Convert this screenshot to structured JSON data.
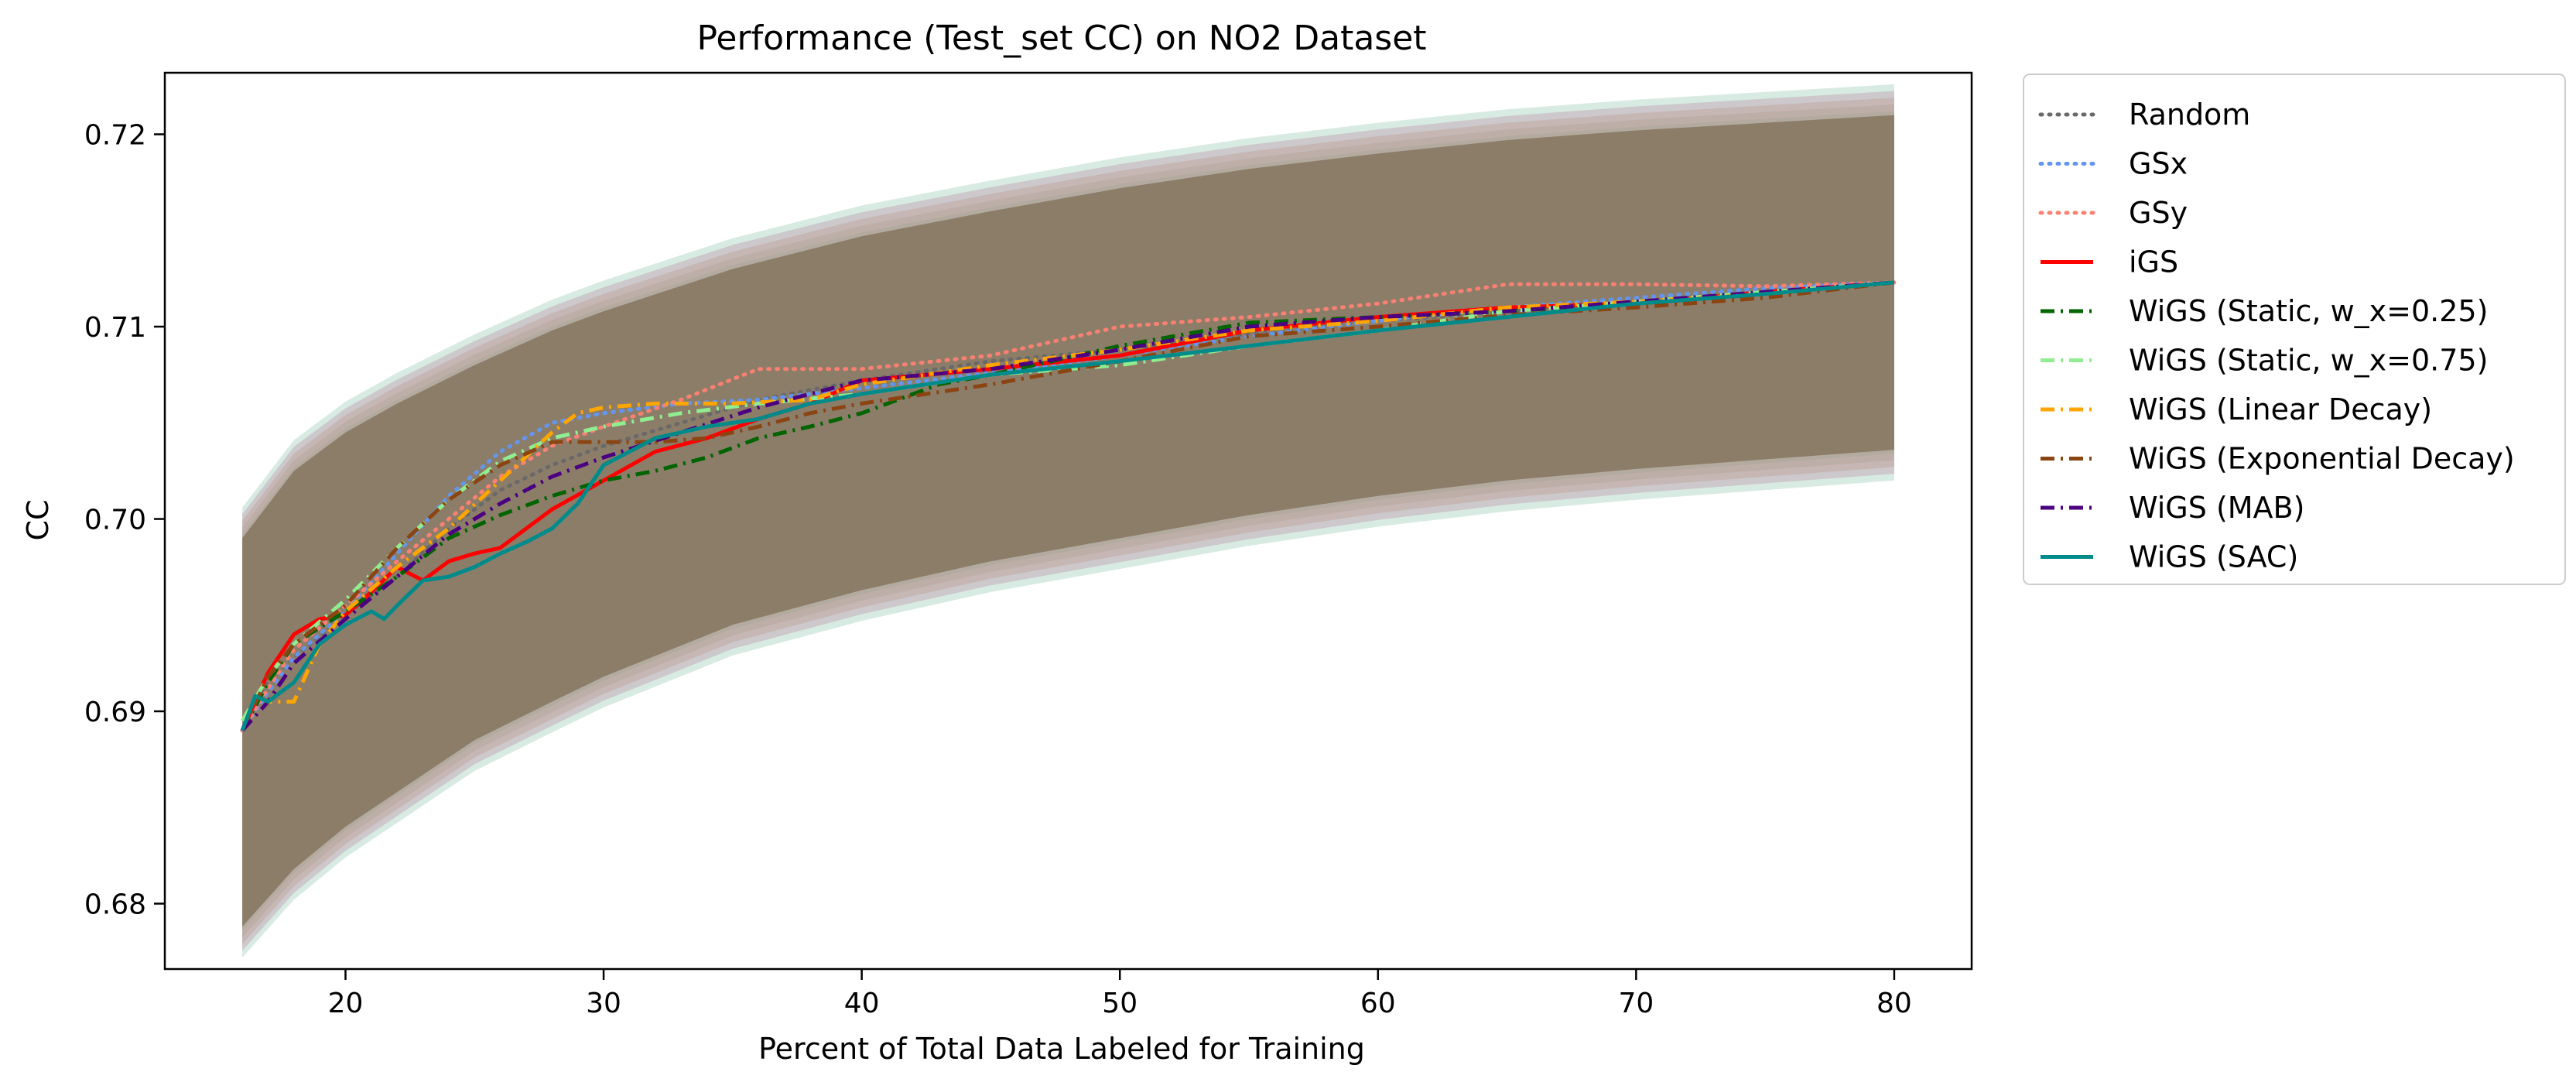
{
  "chart_data": {
    "type": "line",
    "title": "Performance (Test_set CC) on NO2 Dataset",
    "xlabel": "Percent of Total Data Labeled for Training",
    "ylabel": "CC",
    "xlim": [
      13,
      83
    ],
    "ylim": [
      0.6766,
      0.7232
    ],
    "xticks": [
      20,
      30,
      40,
      50,
      60,
      70,
      80
    ],
    "yticks": [
      0.68,
      0.69,
      0.7,
      0.71,
      0.72
    ],
    "xtick_labels": [
      "20",
      "30",
      "40",
      "50",
      "60",
      "70",
      "80"
    ],
    "ytick_labels": [
      "0.68",
      "0.69",
      "0.70",
      "0.71",
      "0.72"
    ],
    "grid": false,
    "legend_position": "outside-right",
    "shared_band": {
      "color": "#a09685",
      "x": [
        16,
        18,
        20,
        22,
        25,
        28,
        30,
        35,
        40,
        45,
        50,
        55,
        60,
        65,
        70,
        75,
        80
      ],
      "upper": [
        0.699,
        0.7025,
        0.7045,
        0.706,
        0.708,
        0.7098,
        0.7108,
        0.713,
        0.7147,
        0.716,
        0.7172,
        0.7182,
        0.719,
        0.7197,
        0.7202,
        0.7206,
        0.721
      ],
      "lower": [
        0.6788,
        0.6818,
        0.684,
        0.6858,
        0.6885,
        0.6905,
        0.6918,
        0.6945,
        0.6963,
        0.6978,
        0.699,
        0.7002,
        0.7012,
        0.702,
        0.7026,
        0.7031,
        0.7036
      ]
    },
    "series": [
      {
        "name": "Random",
        "color": "#696969",
        "dash": "dotted",
        "x": [
          16,
          17,
          18,
          20,
          22,
          24,
          26,
          28,
          30,
          33,
          36,
          40,
          45,
          50,
          55,
          60,
          65,
          70,
          75,
          80
        ],
        "y": [
          0.689,
          0.6915,
          0.6928,
          0.695,
          0.697,
          0.6995,
          0.7015,
          0.7028,
          0.7038,
          0.705,
          0.7062,
          0.7072,
          0.7082,
          0.7088,
          0.7096,
          0.7103,
          0.7108,
          0.7113,
          0.7118,
          0.7123
        ]
      },
      {
        "name": "GSx",
        "color": "#6495ed",
        "dash": "dotted",
        "x": [
          16,
          17,
          18,
          20,
          22,
          24,
          26,
          28,
          30,
          33,
          36,
          40,
          45,
          50,
          55,
          60,
          65,
          70,
          75,
          80
        ],
        "y": [
          0.689,
          0.691,
          0.6928,
          0.6952,
          0.6982,
          0.7012,
          0.7035,
          0.705,
          0.7055,
          0.706,
          0.7062,
          0.7068,
          0.7076,
          0.7085,
          0.7095,
          0.7103,
          0.711,
          0.7115,
          0.712,
          0.7123
        ]
      },
      {
        "name": "GSy",
        "color": "#fa8072",
        "dash": "dotted",
        "x": [
          16,
          17,
          18,
          20,
          22,
          24,
          26,
          28,
          30,
          33,
          36,
          40,
          45,
          50,
          55,
          60,
          65,
          70,
          75,
          80
        ],
        "y": [
          0.689,
          0.6912,
          0.6932,
          0.6955,
          0.6978,
          0.7,
          0.7022,
          0.7038,
          0.7048,
          0.7062,
          0.7078,
          0.7078,
          0.7085,
          0.71,
          0.7105,
          0.7112,
          0.7122,
          0.7122,
          0.7121,
          0.7123
        ]
      },
      {
        "name": "iGS",
        "color": "#ff0000",
        "dash": "solid",
        "x": [
          16,
          17,
          18,
          19,
          20,
          21,
          22,
          23,
          24,
          25,
          26,
          27,
          28,
          30,
          32,
          34,
          36,
          38,
          40,
          45,
          50,
          55,
          60,
          65,
          70,
          75,
          80
        ],
        "y": [
          0.689,
          0.692,
          0.694,
          0.6948,
          0.695,
          0.6962,
          0.6975,
          0.6968,
          0.6978,
          0.6982,
          0.6985,
          0.6995,
          0.7005,
          0.702,
          0.7035,
          0.7042,
          0.7052,
          0.706,
          0.7072,
          0.7078,
          0.7085,
          0.7098,
          0.7105,
          0.711,
          0.7112,
          0.7118,
          0.7123
        ]
      },
      {
        "name": "WiGS (Static, w_x=0.25)",
        "color": "#006400",
        "dash": "dashdot",
        "x": [
          16,
          17,
          18,
          20,
          22,
          24,
          26,
          28,
          30,
          32,
          34,
          36,
          38,
          40,
          43,
          45,
          50,
          55,
          60,
          65,
          70,
          75,
          80
        ],
        "y": [
          0.689,
          0.6915,
          0.6935,
          0.6952,
          0.697,
          0.699,
          0.7002,
          0.7012,
          0.702,
          0.7025,
          0.7032,
          0.7042,
          0.7048,
          0.7055,
          0.707,
          0.7075,
          0.709,
          0.7102,
          0.7105,
          0.7108,
          0.7112,
          0.7117,
          0.7123
        ]
      },
      {
        "name": "WiGS (Static, w_x=0.75)",
        "color": "#90ee90",
        "dash": "dashdot",
        "x": [
          16,
          17,
          18,
          20,
          22,
          24,
          26,
          28,
          30,
          33,
          36,
          40,
          45,
          50,
          55,
          60,
          65,
          70,
          75,
          80
        ],
        "y": [
          0.6895,
          0.6918,
          0.6935,
          0.6958,
          0.6985,
          0.701,
          0.703,
          0.7042,
          0.7048,
          0.7055,
          0.706,
          0.7065,
          0.7075,
          0.708,
          0.709,
          0.7098,
          0.7108,
          0.7113,
          0.7118,
          0.7123
        ]
      },
      {
        "name": "WiGS (Linear Decay)",
        "color": "#ffa500",
        "dash": "dashdot",
        "x": [
          16,
          17,
          18,
          19,
          20,
          22,
          24,
          26,
          28,
          29,
          30,
          32,
          35,
          38,
          40,
          45,
          50,
          55,
          60,
          65,
          70,
          75,
          80
        ],
        "y": [
          0.689,
          0.6905,
          0.6905,
          0.6935,
          0.6952,
          0.6975,
          0.6995,
          0.702,
          0.7045,
          0.7055,
          0.7058,
          0.706,
          0.706,
          0.7062,
          0.707,
          0.708,
          0.7088,
          0.7098,
          0.7103,
          0.711,
          0.7113,
          0.7117,
          0.7123
        ]
      },
      {
        "name": "WiGS (Exponential Decay)",
        "color": "#8b4513",
        "dash": "dashdot",
        "x": [
          16,
          17,
          18,
          20,
          22,
          24,
          26,
          28,
          30,
          32,
          34,
          36,
          38,
          40,
          45,
          50,
          55,
          60,
          65,
          70,
          75,
          80
        ],
        "y": [
          0.689,
          0.6918,
          0.6935,
          0.6955,
          0.6985,
          0.701,
          0.7028,
          0.704,
          0.704,
          0.704,
          0.7042,
          0.7048,
          0.7055,
          0.706,
          0.707,
          0.7082,
          0.7095,
          0.71,
          0.7106,
          0.711,
          0.7115,
          0.7123
        ]
      },
      {
        "name": "WiGS (MAB)",
        "color": "#4b0082",
        "dash": "dashdot",
        "x": [
          16,
          17,
          18,
          20,
          22,
          24,
          26,
          28,
          30,
          33,
          36,
          40,
          45,
          50,
          55,
          60,
          65,
          70,
          75,
          80
        ],
        "y": [
          0.689,
          0.6905,
          0.6925,
          0.6948,
          0.697,
          0.6992,
          0.7008,
          0.7022,
          0.7032,
          0.7045,
          0.7058,
          0.7072,
          0.7078,
          0.7088,
          0.71,
          0.7105,
          0.7108,
          0.7113,
          0.7118,
          0.7123
        ]
      },
      {
        "name": "WiGS (SAC)",
        "color": "#008b8b",
        "dash": "solid",
        "x": [
          16,
          16.5,
          17,
          18,
          19,
          20,
          21,
          21.5,
          22,
          23,
          24,
          25,
          26,
          27,
          28,
          29,
          30,
          32,
          34,
          36,
          38,
          40,
          45,
          50,
          55,
          60,
          65,
          70,
          75,
          80
        ],
        "y": [
          0.689,
          0.6908,
          0.6905,
          0.6915,
          0.6935,
          0.6945,
          0.6952,
          0.6948,
          0.6955,
          0.6968,
          0.697,
          0.6975,
          0.6982,
          0.6988,
          0.6995,
          0.7008,
          0.7028,
          0.7042,
          0.7048,
          0.7052,
          0.706,
          0.7065,
          0.7075,
          0.7082,
          0.709,
          0.7098,
          0.7105,
          0.7112,
          0.7117,
          0.7123
        ]
      }
    ]
  }
}
